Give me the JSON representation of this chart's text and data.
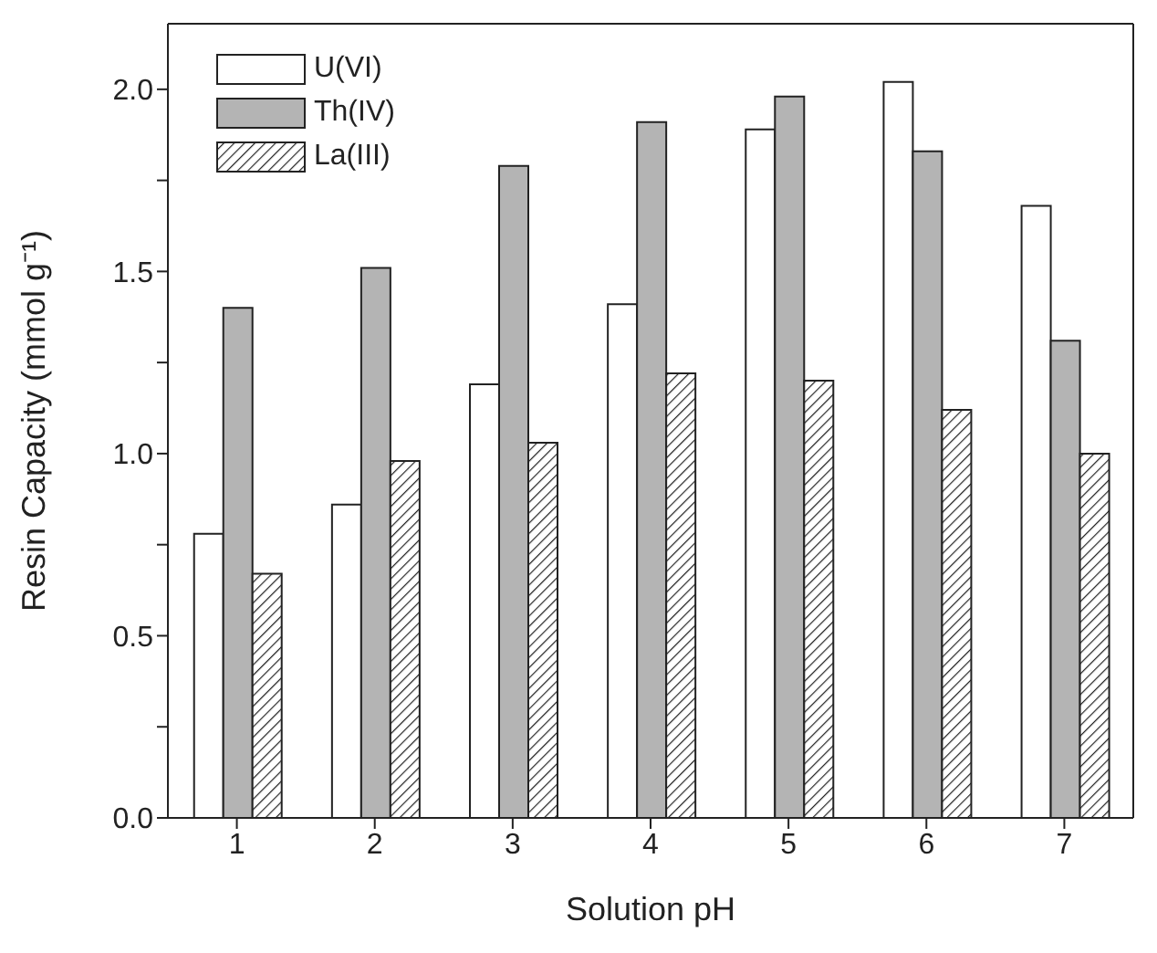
{
  "chart_data": {
    "type": "bar",
    "xlabel": "Solution pH",
    "ylabel": "Resin Capacity (mmol g⁻¹)",
    "categories": [
      "1",
      "2",
      "3",
      "4",
      "5",
      "6",
      "7"
    ],
    "series": [
      {
        "name": "U(VI)",
        "color": "#ffffff",
        "values": [
          0.78,
          0.86,
          1.19,
          1.41,
          1.89,
          2.02,
          1.68
        ]
      },
      {
        "name": "Th(IV)",
        "color": "#b4b4b4",
        "values": [
          1.4,
          1.51,
          1.79,
          1.91,
          1.98,
          1.83,
          1.31
        ]
      },
      {
        "name": "La(III)",
        "color": "#222222",
        "values": [
          0.67,
          0.98,
          1.03,
          1.22,
          1.2,
          1.12,
          1.0
        ]
      }
    ],
    "ylim": [
      0,
      2.18
    ],
    "yticks": [
      {
        "value": 0,
        "label": "0.0"
      },
      {
        "value": 0.25,
        "label": null
      },
      {
        "value": 0.5,
        "label": "0.5"
      },
      {
        "value": 0.75,
        "label": null
      },
      {
        "value": 1,
        "label": "1.0"
      },
      {
        "value": 1.25,
        "label": null
      },
      {
        "value": 1.5,
        "label": "1.5"
      },
      {
        "value": 1.75,
        "label": null
      },
      {
        "value": 2,
        "label": "2.0"
      }
    ],
    "legend": "top left",
    "grid": false
  }
}
